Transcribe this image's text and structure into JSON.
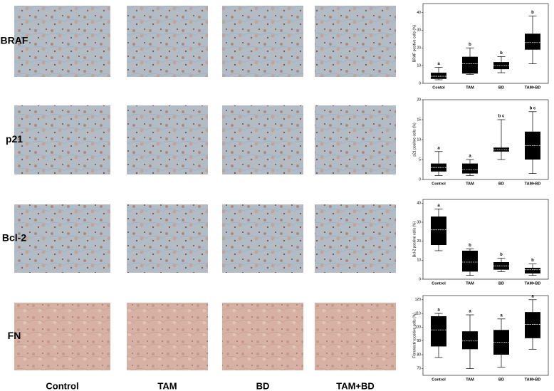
{
  "row_labels": [
    "BRAF",
    "p21",
    "Bcl-2",
    "FN"
  ],
  "column_labels": [
    "Control",
    "TAM",
    "BD",
    "TAM+BD"
  ],
  "chart_data": [
    {
      "type": "box",
      "y_label": "BRAF positive cells (%)",
      "categories": [
        "Contol",
        "TAM",
        "BD",
        "TAM+BD"
      ],
      "boxes": [
        {
          "min": 2,
          "q1": 2.5,
          "median": 4,
          "q3": 6,
          "max": 9
        },
        {
          "min": 5,
          "q1": 5.5,
          "median": 11,
          "q3": 15,
          "max": 20
        },
        {
          "min": 6,
          "q1": 8,
          "median": 10,
          "q3": 12,
          "max": 15
        },
        {
          "min": 11,
          "q1": 19,
          "median": 23,
          "q3": 28,
          "max": 38
        }
      ],
      "annotations": [
        "a",
        "b",
        "b",
        "b"
      ],
      "ylim": [
        0,
        45
      ],
      "yticks": [
        0,
        10,
        20,
        30,
        40
      ],
      "color": "#000000"
    },
    {
      "type": "box",
      "y_label": "p21 positive cells (%)",
      "categories": [
        "Control",
        "TAM",
        "BD",
        "TAM+BD"
      ],
      "boxes": [
        {
          "min": 1,
          "q1": 2,
          "median": 3,
          "q3": 4,
          "max": 7
        },
        {
          "min": 1,
          "q1": 1.5,
          "median": 2.5,
          "q3": 4,
          "max": 5
        },
        {
          "min": 5,
          "q1": 7,
          "median": 7.5,
          "q3": 8,
          "max": 15
        },
        {
          "min": 1.5,
          "q1": 5,
          "median": 8.5,
          "q3": 12,
          "max": 17
        }
      ],
      "annotations": [
        "a",
        "a",
        "b c",
        "b c"
      ],
      "ylim": [
        0,
        20
      ],
      "yticks": [
        0,
        5,
        10,
        15,
        20
      ],
      "color": "#000000"
    },
    {
      "type": "box",
      "y_label": "Bcl-2 positive cells (%)",
      "categories": [
        "Control",
        "TAM",
        "BD",
        "TAM+BD"
      ],
      "boxes": [
        {
          "min": 15,
          "q1": 18,
          "median": 26,
          "q3": 33,
          "max": 37
        },
        {
          "min": 2,
          "q1": 4,
          "median": 9,
          "q3": 15,
          "max": 16
        },
        {
          "min": 4,
          "q1": 5,
          "median": 7,
          "q3": 9,
          "max": 11
        },
        {
          "min": 2,
          "q1": 3,
          "median": 5,
          "q3": 6,
          "max": 8
        }
      ],
      "annotations": [
        "a",
        "b",
        "b",
        "b"
      ],
      "ylim": [
        0,
        42
      ],
      "yticks": [
        0,
        10,
        20,
        30,
        40
      ],
      "color": "#000000"
    },
    {
      "type": "box",
      "y_label": "Fibronectin positive cells (%)",
      "categories": [
        "Control",
        "TAM",
        "BD",
        "TAM+BD"
      ],
      "boxes": [
        {
          "min": 78,
          "q1": 86,
          "median": 98,
          "q3": 108,
          "max": 110
        },
        {
          "min": 70,
          "q1": 84,
          "median": 90,
          "q3": 97,
          "max": 109
        },
        {
          "min": 71,
          "q1": 80,
          "median": 89,
          "q3": 98,
          "max": 106
        },
        {
          "min": 84,
          "q1": 92,
          "median": 102,
          "q3": 111,
          "max": 120
        }
      ],
      "annotations": [
        "a",
        "a",
        "a",
        "a"
      ],
      "ylim": [
        65,
        123
      ],
      "yticks": [
        70,
        80,
        90,
        100,
        110,
        120
      ],
      "color": "#000000"
    }
  ]
}
